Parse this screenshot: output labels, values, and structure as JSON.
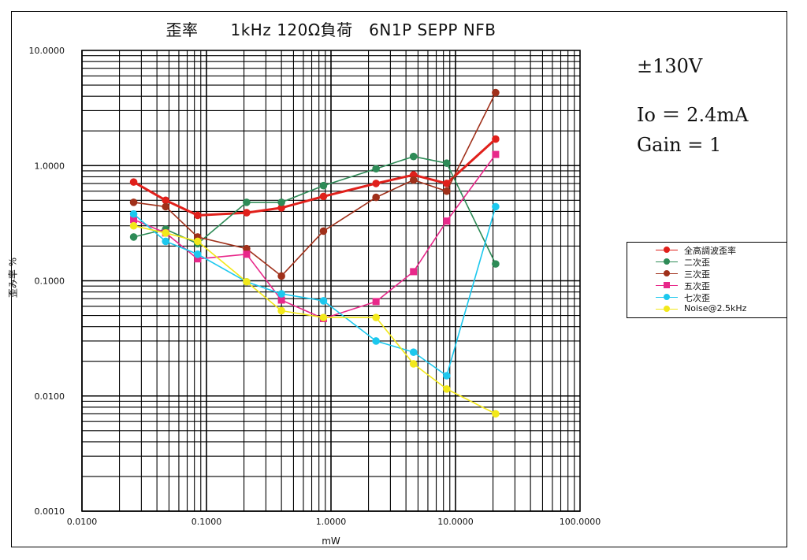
{
  "chart_data": {
    "type": "line",
    "title": "歪率　　1kHz 120Ω負荷　6N1P SEPP NFB",
    "xlabel": "mW",
    "ylabel": "歪み率 %",
    "x_scale": "log",
    "y_scale": "log",
    "xlim": [
      0.01,
      100
    ],
    "ylim": [
      0.001,
      10
    ],
    "grid": true,
    "legend_position": "right",
    "x_tick_labels": [
      "0.0100",
      "0.1000",
      "1.0000",
      "10.0000",
      "100.0000"
    ],
    "y_tick_labels": [
      "0.0010",
      "0.0100",
      "0.1000",
      "1.0000",
      "10.0000"
    ],
    "annotations": [
      "±130V",
      "Io ＝ 2.4mA",
      "Gain = 1"
    ],
    "series": [
      {
        "name": "全高調波歪率",
        "color": "#e0201b",
        "marker": "circle",
        "thick": true,
        "points": [
          [
            0.026,
            0.72
          ],
          [
            0.047,
            0.5
          ],
          [
            0.085,
            0.37
          ],
          [
            0.21,
            0.39
          ],
          [
            0.4,
            0.43
          ],
          [
            0.87,
            0.54
          ],
          [
            2.3,
            0.7
          ],
          [
            4.6,
            0.83
          ],
          [
            8.5,
            0.7
          ],
          [
            21,
            1.7
          ]
        ]
      },
      {
        "name": "二次歪",
        "color": "#2e8b57",
        "marker": "circle",
        "thick": false,
        "points": [
          [
            0.026,
            0.24
          ],
          [
            0.047,
            0.28
          ],
          [
            0.085,
            0.21
          ],
          [
            0.21,
            0.48
          ],
          [
            0.4,
            0.48
          ],
          [
            0.87,
            0.67
          ],
          [
            2.3,
            0.94
          ],
          [
            4.6,
            1.2
          ],
          [
            8.5,
            1.05
          ],
          [
            21,
            0.14
          ]
        ]
      },
      {
        "name": "三次歪",
        "color": "#a0301a",
        "marker": "circle",
        "thick": false,
        "points": [
          [
            0.026,
            0.48
          ],
          [
            0.047,
            0.44
          ],
          [
            0.085,
            0.24
          ],
          [
            0.21,
            0.19
          ],
          [
            0.4,
            0.11
          ],
          [
            0.87,
            0.27
          ],
          [
            2.3,
            0.53
          ],
          [
            4.6,
            0.75
          ],
          [
            8.5,
            0.6
          ],
          [
            21,
            4.3
          ]
        ]
      },
      {
        "name": "五次歪",
        "color": "#e8288a",
        "marker": "square",
        "thick": false,
        "points": [
          [
            0.026,
            0.34
          ],
          [
            0.047,
            0.26
          ],
          [
            0.085,
            0.155
          ],
          [
            0.21,
            0.17
          ],
          [
            0.4,
            0.068
          ],
          [
            0.87,
            0.047
          ],
          [
            2.3,
            0.066
          ],
          [
            4.6,
            0.12
          ],
          [
            8.5,
            0.33
          ],
          [
            21,
            1.25
          ]
        ]
      },
      {
        "name": "七次歪",
        "color": "#1cc8ee",
        "marker": "circle",
        "thick": false,
        "points": [
          [
            0.026,
            0.38
          ],
          [
            0.047,
            0.22
          ],
          [
            0.085,
            0.17
          ],
          [
            0.21,
            0.098
          ],
          [
            0.4,
            0.077
          ],
          [
            0.87,
            0.067
          ],
          [
            2.3,
            0.03
          ],
          [
            4.6,
            0.024
          ],
          [
            8.5,
            0.015
          ],
          [
            21,
            0.44
          ]
        ]
      },
      {
        "name": "Noise@2.5kHz",
        "color": "#f2e81a",
        "marker": "circle",
        "thick": false,
        "points": [
          [
            0.026,
            0.3
          ],
          [
            0.047,
            0.26
          ],
          [
            0.085,
            0.22
          ],
          [
            0.21,
            0.098
          ],
          [
            0.4,
            0.055
          ],
          [
            0.87,
            0.048
          ],
          [
            2.3,
            0.048
          ],
          [
            4.6,
            0.019
          ],
          [
            8.5,
            0.0115
          ],
          [
            21,
            0.007
          ]
        ]
      }
    ]
  }
}
